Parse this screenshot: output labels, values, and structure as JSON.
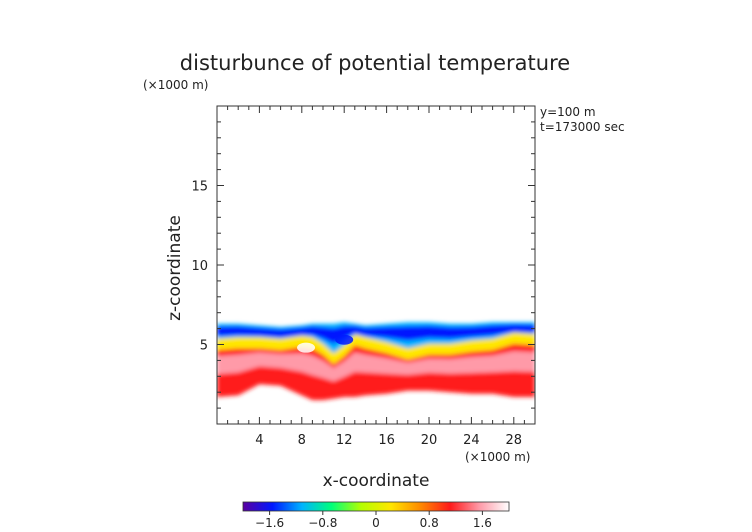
{
  "chart_data": {
    "type": "heatmap",
    "title": "disturbunce of potential temperature",
    "scale_note": "(×1000 m)",
    "xlabel": "x-coordinate",
    "ylabel": "z-coordinate",
    "x_unit": "(×1000 m)",
    "info_lines": [
      "y=100 m",
      "t=173000 sec"
    ],
    "xlim": [
      0,
      30
    ],
    "ylim": [
      0,
      20
    ],
    "x_ticks": [
      4,
      8,
      12,
      16,
      20,
      24,
      28
    ],
    "y_ticks": [
      5,
      10,
      15
    ],
    "colorbar": {
      "range": [
        -2.0,
        2.0
      ],
      "tick_values": [
        -1.6,
        -0.8,
        0,
        0.8,
        1.6
      ],
      "tick_labels": [
        "−1.6",
        "−0.8",
        "0",
        "0.8",
        "1.6"
      ],
      "colors": [
        "#5a00a0",
        "#0018ff",
        "#00b4ff",
        "#00ff7a",
        "#b4ff00",
        "#ffe600",
        "#ff8a00",
        "#ff1a1a",
        "#ff9aa8",
        "#ffffff"
      ]
    },
    "layer_profile": {
      "x": [
        0,
        2,
        4,
        6,
        8,
        9,
        10,
        11,
        12,
        13,
        14,
        16,
        18,
        20,
        22,
        24,
        26,
        28,
        30
      ],
      "top": [
        6.3,
        6.3,
        6.2,
        6.1,
        6.2,
        6.3,
        6.3,
        6.3,
        6.4,
        6.3,
        6.2,
        6.3,
        6.4,
        6.4,
        6.3,
        6.3,
        6.4,
        6.4,
        6.4
      ],
      "zero": [
        4.9,
        5.0,
        5.0,
        4.9,
        5.1,
        5.0,
        4.6,
        4.0,
        4.5,
        5.2,
        5.0,
        4.7,
        4.3,
        4.6,
        4.6,
        4.8,
        4.9,
        5.3,
        5.2
      ],
      "bottom": [
        1.7,
        1.8,
        2.5,
        2.4,
        1.8,
        1.5,
        1.5,
        1.6,
        1.7,
        1.7,
        1.8,
        1.9,
        2.1,
        2.1,
        2.0,
        1.9,
        1.9,
        1.7,
        1.7
      ]
    },
    "features": [
      {
        "x": 8.4,
        "z": 4.8,
        "value": 2.0
      },
      {
        "x": 12.0,
        "z": 5.3,
        "value": -1.4
      }
    ]
  }
}
